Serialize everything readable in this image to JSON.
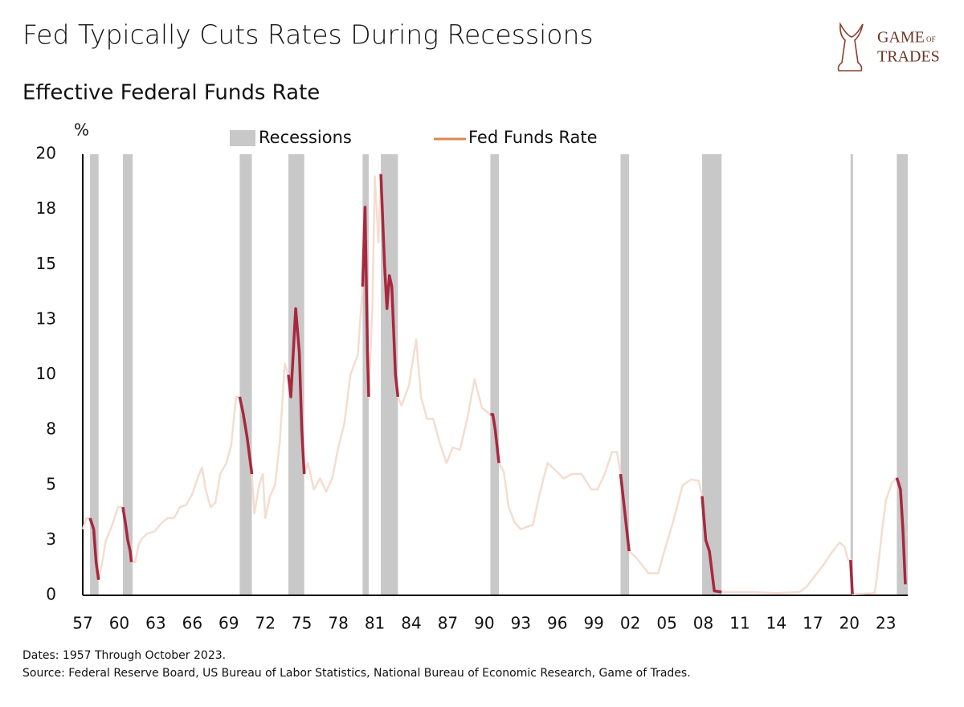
{
  "chart_data": {
    "type": "line",
    "title": "Fed Typically Cuts Rates During Recessions",
    "subtitle": "Effective Federal Funds Rate",
    "y_unit": "%",
    "logo": {
      "line1": "GAME",
      "of": "OF",
      "line2": "TRADES"
    },
    "footnote": "Dates: 1957 Through October 2023.",
    "source": "Source: Federal Reserve Board, US Bureau of Labor Statistics, National Bureau of Economic Research, Game of Trades.",
    "recessions_label": "Recessions",
    "recession_color": "#c8c8c8",
    "highlight_color": "#a8283e",
    "recessions": [
      [
        1957.6,
        1958.3
      ],
      [
        1960.3,
        1961.1
      ],
      [
        1969.9,
        1970.9
      ],
      [
        1973.9,
        1975.2
      ],
      [
        1980.0,
        1980.5
      ],
      [
        1981.5,
        1982.9
      ],
      [
        1990.5,
        1991.2
      ],
      [
        2001.2,
        2001.9
      ],
      [
        2007.9,
        2009.5
      ],
      [
        2020.1,
        2020.3
      ],
      [
        2023.9,
        2024.8
      ]
    ],
    "x": [
      1957.0,
      1957.3,
      1957.6,
      1957.9,
      1958.1,
      1958.3,
      1958.6,
      1958.9,
      1959.3,
      1959.6,
      1959.9,
      1960.3,
      1960.5,
      1960.7,
      1960.9,
      1961.0,
      1961.3,
      1961.6,
      1961.9,
      1962.3,
      1962.9,
      1963.5,
      1964.0,
      1964.5,
      1965.0,
      1965.5,
      1966.0,
      1966.5,
      1966.8,
      1967.1,
      1967.5,
      1967.9,
      1968.3,
      1968.8,
      1969.2,
      1969.6,
      1969.9,
      1970.2,
      1970.5,
      1970.9,
      1971.1,
      1971.5,
      1971.8,
      1972.0,
      1972.4,
      1972.8,
      1973.2,
      1973.6,
      1973.9,
      1974.1,
      1974.5,
      1974.8,
      1975.0,
      1975.2,
      1975.5,
      1976.0,
      1976.5,
      1977.0,
      1977.5,
      1978.0,
      1978.5,
      1979.0,
      1979.6,
      1980.0,
      1980.2,
      1980.4,
      1980.5,
      1980.8,
      1981.0,
      1981.3,
      1981.5,
      1981.8,
      1982.0,
      1982.2,
      1982.4,
      1982.7,
      1982.9,
      1983.2,
      1983.8,
      1984.4,
      1984.8,
      1985.3,
      1985.8,
      1986.4,
      1986.9,
      1987.4,
      1988.0,
      1988.6,
      1989.2,
      1989.8,
      1990.5,
      1990.7,
      1990.9,
      1991.2,
      1991.6,
      1992.0,
      1992.5,
      1993.0,
      1994.0,
      1994.5,
      1995.2,
      1995.8,
      1996.5,
      1997.2,
      1998.0,
      1998.8,
      1999.3,
      1999.9,
      2000.5,
      2000.9,
      2001.2,
      2001.5,
      2001.9,
      2002.5,
      2003.5,
      2004.3,
      2004.8,
      2005.5,
      2006.3,
      2007.0,
      2007.6,
      2007.9,
      2008.2,
      2008.5,
      2008.9,
      2009.5,
      2010.0,
      2012.0,
      2014.0,
      2015.9,
      2016.5,
      2017.2,
      2017.9,
      2018.5,
      2019.2,
      2019.6,
      2019.9,
      2020.1,
      2020.25,
      2021.5,
      2022.1,
      2022.4,
      2022.7,
      2023.0,
      2023.5,
      2023.9,
      2024.2,
      2024.4,
      2024.6
    ],
    "series": [
      {
        "name": "Fed Funds Rate",
        "color": "#f4ddd0",
        "legend_color": "#d98a4e",
        "values": [
          3.0,
          3.5,
          3.5,
          3.0,
          1.5,
          0.7,
          1.5,
          2.5,
          3.0,
          3.5,
          4.0,
          4.0,
          3.3,
          2.5,
          2.0,
          1.5,
          1.5,
          2.3,
          2.6,
          2.8,
          2.9,
          3.3,
          3.5,
          3.5,
          4.0,
          4.1,
          4.6,
          5.4,
          5.8,
          4.8,
          4.0,
          4.2,
          5.5,
          6.0,
          6.8,
          9.0,
          9.0,
          8.2,
          7.2,
          5.5,
          3.7,
          5.0,
          5.5,
          3.5,
          4.5,
          5.0,
          7.0,
          10.5,
          10.0,
          9.0,
          13.0,
          11.0,
          7.5,
          5.5,
          6.0,
          4.8,
          5.3,
          4.7,
          5.3,
          6.7,
          7.8,
          10.0,
          10.9,
          14.0,
          17.6,
          11.0,
          9.0,
          13.0,
          19.0,
          16.0,
          19.1,
          15.0,
          13.0,
          14.5,
          14.0,
          10.0,
          9.0,
          8.6,
          9.5,
          11.6,
          9.0,
          8.0,
          8.0,
          6.8,
          6.0,
          6.7,
          6.6,
          8.0,
          9.8,
          8.5,
          8.2,
          8.2,
          7.5,
          6.0,
          5.6,
          4.0,
          3.3,
          3.0,
          3.2,
          4.5,
          6.0,
          5.7,
          5.3,
          5.5,
          5.5,
          4.8,
          4.8,
          5.5,
          6.5,
          6.5,
          5.5,
          4.0,
          2.0,
          1.7,
          1.0,
          1.0,
          2.0,
          3.3,
          5.0,
          5.25,
          5.2,
          4.5,
          2.5,
          2.0,
          0.2,
          0.15,
          0.15,
          0.15,
          0.1,
          0.15,
          0.4,
          0.9,
          1.4,
          1.9,
          2.4,
          2.2,
          1.6,
          1.6,
          0.05,
          0.08,
          0.1,
          1.5,
          3.0,
          4.3,
          5.1,
          5.33,
          4.8,
          3.0,
          0.5
        ]
      }
    ],
    "xlim": [
      1957,
      2024.8
    ],
    "ylim": [
      0,
      20
    ],
    "xticks": [
      {
        "value": 1957,
        "label": "57"
      },
      {
        "value": 1960,
        "label": "60"
      },
      {
        "value": 1963,
        "label": "63"
      },
      {
        "value": 1966,
        "label": "66"
      },
      {
        "value": 1969,
        "label": "69"
      },
      {
        "value": 1972,
        "label": "72"
      },
      {
        "value": 1975,
        "label": "75"
      },
      {
        "value": 1978,
        "label": "78"
      },
      {
        "value": 1981,
        "label": "81"
      },
      {
        "value": 1984,
        "label": "84"
      },
      {
        "value": 1987,
        "label": "87"
      },
      {
        "value": 1990,
        "label": "90"
      },
      {
        "value": 1993,
        "label": "93"
      },
      {
        "value": 1996,
        "label": "96"
      },
      {
        "value": 1999,
        "label": "99"
      },
      {
        "value": 2002,
        "label": "02"
      },
      {
        "value": 2005,
        "label": "05"
      },
      {
        "value": 2008,
        "label": "08"
      },
      {
        "value": 2011,
        "label": "11"
      },
      {
        "value": 2014,
        "label": "14"
      },
      {
        "value": 2017,
        "label": "17"
      },
      {
        "value": 2020,
        "label": "20"
      },
      {
        "value": 2023,
        "label": "23"
      }
    ],
    "yticks": [
      0,
      {
        "value": 2.5,
        "label": "3"
      },
      5,
      {
        "value": 7.5,
        "label": "8"
      },
      10,
      {
        "value": 12.5,
        "label": "13"
      },
      15,
      {
        "value": 17.5,
        "label": "18"
      },
      20
    ]
  }
}
